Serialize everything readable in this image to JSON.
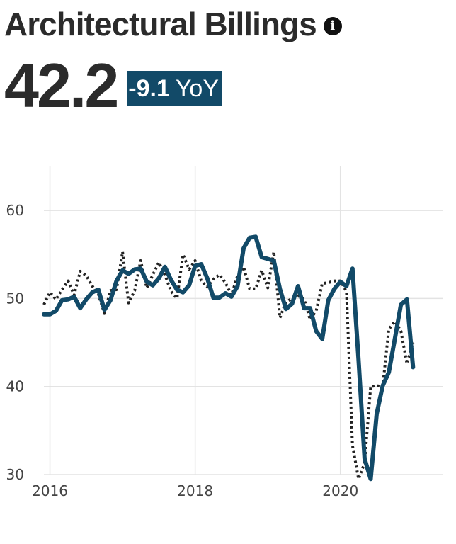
{
  "header": {
    "title": "Architectural Billings",
    "info_icon": "info-icon"
  },
  "kpi": {
    "value": "42.2",
    "change": "-9.1",
    "change_unit": "YoY",
    "badge_color": "#124a68"
  },
  "chart_data": {
    "type": "line",
    "title": "",
    "xlabel": "",
    "ylabel": "",
    "xlim": [
      "2015-12",
      "2021-06"
    ],
    "ylim": [
      30,
      65
    ],
    "x_ticks": [
      "2016",
      "2018",
      "2020"
    ],
    "y_ticks": [
      30,
      40,
      50,
      60
    ],
    "grid": true,
    "legend": "none",
    "x": [
      "2015-12",
      "2016-01",
      "2016-02",
      "2016-03",
      "2016-04",
      "2016-05",
      "2016-06",
      "2016-07",
      "2016-08",
      "2016-09",
      "2016-10",
      "2016-11",
      "2016-12",
      "2017-01",
      "2017-02",
      "2017-03",
      "2017-04",
      "2017-05",
      "2017-06",
      "2017-07",
      "2017-08",
      "2017-09",
      "2017-10",
      "2017-11",
      "2017-12",
      "2018-01",
      "2018-02",
      "2018-03",
      "2018-04",
      "2018-05",
      "2018-06",
      "2018-07",
      "2018-08",
      "2018-09",
      "2018-10",
      "2018-11",
      "2018-12",
      "2019-01",
      "2019-02",
      "2019-03",
      "2019-04",
      "2019-05",
      "2019-06",
      "2019-07",
      "2019-08",
      "2019-09",
      "2019-10",
      "2019-11",
      "2019-12",
      "2020-01",
      "2020-02",
      "2020-03",
      "2020-04",
      "2020-05",
      "2020-06",
      "2020-07",
      "2020-08",
      "2020-09",
      "2020-10",
      "2020-11",
      "2020-12",
      "2021-01"
    ],
    "series": [
      {
        "style": "solid",
        "color": "#124a68",
        "values": [
          48.2,
          48.2,
          48.6,
          49.8,
          49.9,
          50.2,
          48.9,
          49.9,
          50.7,
          51.0,
          48.7,
          49.8,
          52.0,
          53.2,
          52.8,
          53.3,
          53.4,
          51.9,
          51.5,
          52.3,
          53.6,
          52.1,
          51.0,
          50.7,
          51.5,
          53.7,
          53.9,
          52.3,
          50.1,
          50.1,
          50.6,
          50.2,
          51.4,
          55.7,
          56.9,
          57.0,
          54.7,
          54.5,
          54.3,
          51.1,
          48.8,
          49.4,
          51.4,
          48.9,
          48.9,
          46.3,
          45.4,
          49.8,
          51.1,
          51.9,
          51.4,
          53.4,
          43.0,
          31.8,
          29.5,
          36.9,
          40.1,
          41.6,
          45.4,
          49.3,
          49.9,
          42.2
        ]
      },
      {
        "style": "dotted",
        "color": "#222222",
        "values": [
          49.3,
          50.7,
          49.9,
          51.0,
          52.0,
          50.4,
          53.1,
          52.6,
          51.4,
          50.5,
          48.3,
          50.9,
          51.0,
          55.3,
          49.5,
          50.9,
          54.3,
          51.2,
          52.7,
          54.1,
          52.7,
          50.8,
          50.0,
          55.0,
          53.3,
          54.3,
          52.0,
          51.3,
          52.2,
          52.7,
          51.8,
          50.4,
          52.6,
          53.6,
          51.1,
          51.1,
          53.2,
          51.2,
          55.3,
          47.8,
          49.6,
          50.0,
          50.3,
          49.9,
          47.6,
          48.6,
          51.7,
          51.8,
          52.0,
          52.0,
          50.8,
          33.3,
          29.5,
          31.3,
          40.0,
          40.1,
          40.0,
          46.5,
          47.4,
          46.3,
          42.6,
          45.0
        ]
      }
    ]
  }
}
